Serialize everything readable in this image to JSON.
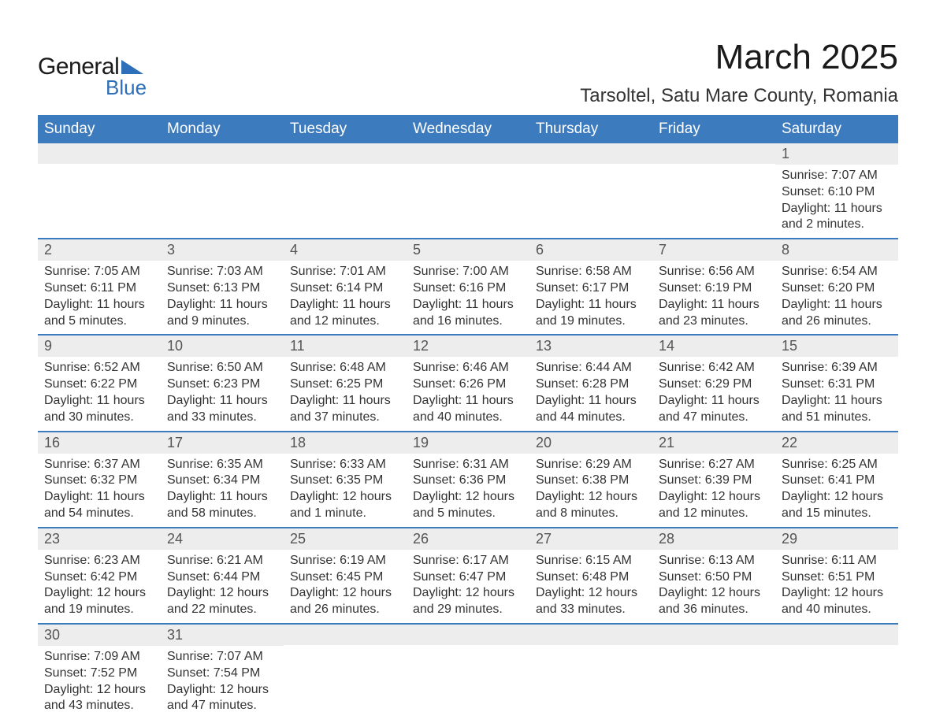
{
  "logo": {
    "text_general": "General",
    "text_blue": "Blue"
  },
  "header": {
    "title": "March 2025",
    "location": "Tarsoltel, Satu Mare County, Romania"
  },
  "colors": {
    "header_bg": "#3d7bbf",
    "header_text": "#ffffff",
    "daynum_bg": "#ededed",
    "daynum_text": "#555555",
    "body_text": "#333333",
    "divider": "#3d7bbf",
    "logo_blue": "#2d6fb8",
    "page_bg": "#ffffff"
  },
  "typography": {
    "title_fontsize": 44,
    "location_fontsize": 24,
    "dayheader_fontsize": 19,
    "daynum_fontsize": 18,
    "body_fontsize": 16
  },
  "day_names": [
    "Sunday",
    "Monday",
    "Tuesday",
    "Wednesday",
    "Thursday",
    "Friday",
    "Saturday"
  ],
  "weeks": [
    [
      null,
      null,
      null,
      null,
      null,
      null,
      {
        "day": "1",
        "sunrise": "Sunrise: 7:07 AM",
        "sunset": "Sunset: 6:10 PM",
        "daylight": "Daylight: 11 hours and 2 minutes."
      }
    ],
    [
      {
        "day": "2",
        "sunrise": "Sunrise: 7:05 AM",
        "sunset": "Sunset: 6:11 PM",
        "daylight": "Daylight: 11 hours and 5 minutes."
      },
      {
        "day": "3",
        "sunrise": "Sunrise: 7:03 AM",
        "sunset": "Sunset: 6:13 PM",
        "daylight": "Daylight: 11 hours and 9 minutes."
      },
      {
        "day": "4",
        "sunrise": "Sunrise: 7:01 AM",
        "sunset": "Sunset: 6:14 PM",
        "daylight": "Daylight: 11 hours and 12 minutes."
      },
      {
        "day": "5",
        "sunrise": "Sunrise: 7:00 AM",
        "sunset": "Sunset: 6:16 PM",
        "daylight": "Daylight: 11 hours and 16 minutes."
      },
      {
        "day": "6",
        "sunrise": "Sunrise: 6:58 AM",
        "sunset": "Sunset: 6:17 PM",
        "daylight": "Daylight: 11 hours and 19 minutes."
      },
      {
        "day": "7",
        "sunrise": "Sunrise: 6:56 AM",
        "sunset": "Sunset: 6:19 PM",
        "daylight": "Daylight: 11 hours and 23 minutes."
      },
      {
        "day": "8",
        "sunrise": "Sunrise: 6:54 AM",
        "sunset": "Sunset: 6:20 PM",
        "daylight": "Daylight: 11 hours and 26 minutes."
      }
    ],
    [
      {
        "day": "9",
        "sunrise": "Sunrise: 6:52 AM",
        "sunset": "Sunset: 6:22 PM",
        "daylight": "Daylight: 11 hours and 30 minutes."
      },
      {
        "day": "10",
        "sunrise": "Sunrise: 6:50 AM",
        "sunset": "Sunset: 6:23 PM",
        "daylight": "Daylight: 11 hours and 33 minutes."
      },
      {
        "day": "11",
        "sunrise": "Sunrise: 6:48 AM",
        "sunset": "Sunset: 6:25 PM",
        "daylight": "Daylight: 11 hours and 37 minutes."
      },
      {
        "day": "12",
        "sunrise": "Sunrise: 6:46 AM",
        "sunset": "Sunset: 6:26 PM",
        "daylight": "Daylight: 11 hours and 40 minutes."
      },
      {
        "day": "13",
        "sunrise": "Sunrise: 6:44 AM",
        "sunset": "Sunset: 6:28 PM",
        "daylight": "Daylight: 11 hours and 44 minutes."
      },
      {
        "day": "14",
        "sunrise": "Sunrise: 6:42 AM",
        "sunset": "Sunset: 6:29 PM",
        "daylight": "Daylight: 11 hours and 47 minutes."
      },
      {
        "day": "15",
        "sunrise": "Sunrise: 6:39 AM",
        "sunset": "Sunset: 6:31 PM",
        "daylight": "Daylight: 11 hours and 51 minutes."
      }
    ],
    [
      {
        "day": "16",
        "sunrise": "Sunrise: 6:37 AM",
        "sunset": "Sunset: 6:32 PM",
        "daylight": "Daylight: 11 hours and 54 minutes."
      },
      {
        "day": "17",
        "sunrise": "Sunrise: 6:35 AM",
        "sunset": "Sunset: 6:34 PM",
        "daylight": "Daylight: 11 hours and 58 minutes."
      },
      {
        "day": "18",
        "sunrise": "Sunrise: 6:33 AM",
        "sunset": "Sunset: 6:35 PM",
        "daylight": "Daylight: 12 hours and 1 minute."
      },
      {
        "day": "19",
        "sunrise": "Sunrise: 6:31 AM",
        "sunset": "Sunset: 6:36 PM",
        "daylight": "Daylight: 12 hours and 5 minutes."
      },
      {
        "day": "20",
        "sunrise": "Sunrise: 6:29 AM",
        "sunset": "Sunset: 6:38 PM",
        "daylight": "Daylight: 12 hours and 8 minutes."
      },
      {
        "day": "21",
        "sunrise": "Sunrise: 6:27 AM",
        "sunset": "Sunset: 6:39 PM",
        "daylight": "Daylight: 12 hours and 12 minutes."
      },
      {
        "day": "22",
        "sunrise": "Sunrise: 6:25 AM",
        "sunset": "Sunset: 6:41 PM",
        "daylight": "Daylight: 12 hours and 15 minutes."
      }
    ],
    [
      {
        "day": "23",
        "sunrise": "Sunrise: 6:23 AM",
        "sunset": "Sunset: 6:42 PM",
        "daylight": "Daylight: 12 hours and 19 minutes."
      },
      {
        "day": "24",
        "sunrise": "Sunrise: 6:21 AM",
        "sunset": "Sunset: 6:44 PM",
        "daylight": "Daylight: 12 hours and 22 minutes."
      },
      {
        "day": "25",
        "sunrise": "Sunrise: 6:19 AM",
        "sunset": "Sunset: 6:45 PM",
        "daylight": "Daylight: 12 hours and 26 minutes."
      },
      {
        "day": "26",
        "sunrise": "Sunrise: 6:17 AM",
        "sunset": "Sunset: 6:47 PM",
        "daylight": "Daylight: 12 hours and 29 minutes."
      },
      {
        "day": "27",
        "sunrise": "Sunrise: 6:15 AM",
        "sunset": "Sunset: 6:48 PM",
        "daylight": "Daylight: 12 hours and 33 minutes."
      },
      {
        "day": "28",
        "sunrise": "Sunrise: 6:13 AM",
        "sunset": "Sunset: 6:50 PM",
        "daylight": "Daylight: 12 hours and 36 minutes."
      },
      {
        "day": "29",
        "sunrise": "Sunrise: 6:11 AM",
        "sunset": "Sunset: 6:51 PM",
        "daylight": "Daylight: 12 hours and 40 minutes."
      }
    ],
    [
      {
        "day": "30",
        "sunrise": "Sunrise: 7:09 AM",
        "sunset": "Sunset: 7:52 PM",
        "daylight": "Daylight: 12 hours and 43 minutes."
      },
      {
        "day": "31",
        "sunrise": "Sunrise: 7:07 AM",
        "sunset": "Sunset: 7:54 PM",
        "daylight": "Daylight: 12 hours and 47 minutes."
      },
      null,
      null,
      null,
      null,
      null
    ]
  ]
}
